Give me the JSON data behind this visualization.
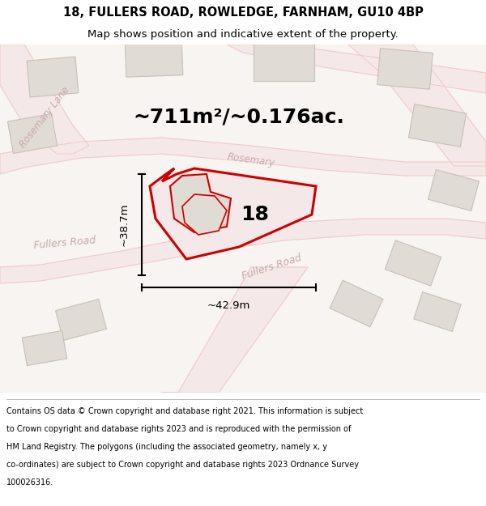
{
  "title": "18, FULLERS ROAD, ROWLEDGE, FARNHAM, GU10 4BP",
  "subtitle": "Map shows position and indicative extent of the property.",
  "area_text": "~711m²/~0.176ac.",
  "dim_width": "~42.9m",
  "dim_height": "~38.7m",
  "label_18": "18",
  "footer_lines": [
    "Contains OS data © Crown copyright and database right 2021. This information is subject",
    "to Crown copyright and database rights 2023 and is reproduced with the permission of",
    "HM Land Registry. The polygons (including the associated geometry, namely x, y",
    "co-ordinates) are subject to Crown copyright and database rights 2023 Ordnance Survey",
    "100026316."
  ],
  "bg_color": "#f7f4f1",
  "road_fill": "#f5e8e8",
  "road_line": "#e8b0b0",
  "road_line_light": "#f0c8c8",
  "building_color": "#e0dbd5",
  "building_stroke": "#c8c0b8",
  "property_fill": "#f5e8e8",
  "property_stroke": "#cc0000",
  "dim_color": "#000000",
  "text_color": "#000000",
  "road_label_color": "#c8aaaa",
  "footer_color": "#000000",
  "white_bg": "#ffffff",
  "title_fontsize": 10.5,
  "subtitle_fontsize": 9.5,
  "area_fontsize": 18,
  "label_fontsize": 18,
  "dim_fontsize": 9.5,
  "footer_fontsize": 7.0,
  "road_label_fontsize": 8.5
}
